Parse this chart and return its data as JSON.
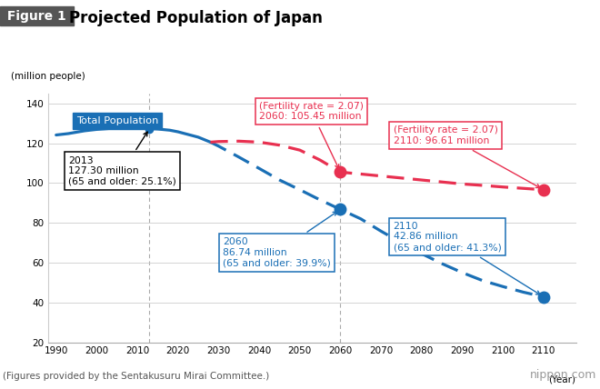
{
  "title": "Projected Population of Japan",
  "figure_label": "Figure 1",
  "ylabel": "(million people)",
  "xlabel": "(Year)",
  "ylim": [
    20,
    145
  ],
  "yticks": [
    20,
    40,
    60,
    80,
    100,
    120,
    140
  ],
  "xlim": [
    1988,
    2118
  ],
  "xticks": [
    1990,
    2000,
    2010,
    2020,
    2030,
    2040,
    2050,
    2060,
    2070,
    2080,
    2090,
    2100,
    2110
  ],
  "footnote": "(Figures provided by the Sentakusuru Mirai Committee.)",
  "watermark": "nippon.com",
  "blue_solid_x": [
    1990,
    1993,
    1997,
    2000,
    2004,
    2008,
    2010,
    2013,
    2015,
    2018,
    2020,
    2025,
    2028
  ],
  "blue_solid_y": [
    124.1,
    124.8,
    126.2,
    126.9,
    127.5,
    128.0,
    128.1,
    127.3,
    127.1,
    126.5,
    125.7,
    123.0,
    120.5
  ],
  "blue_dashed_x": [
    2028,
    2030,
    2035,
    2040,
    2045,
    2050,
    2055,
    2060,
    2065,
    2070,
    2075,
    2080,
    2085,
    2090,
    2095,
    2100,
    2105,
    2110
  ],
  "blue_dashed_y": [
    120.5,
    118.5,
    113.0,
    107.3,
    101.5,
    96.6,
    91.5,
    86.74,
    82.0,
    75.8,
    70.0,
    64.5,
    59.5,
    55.0,
    51.0,
    48.0,
    45.2,
    42.86
  ],
  "red_dashed_x": [
    2028,
    2030,
    2035,
    2040,
    2045,
    2050,
    2055,
    2060,
    2065,
    2070,
    2075,
    2080,
    2085,
    2090,
    2095,
    2100,
    2105,
    2110
  ],
  "red_dashed_y": [
    120.5,
    120.8,
    121.0,
    120.5,
    119.0,
    116.5,
    111.5,
    105.45,
    104.5,
    103.5,
    102.5,
    101.5,
    100.5,
    99.5,
    98.8,
    98.0,
    97.3,
    96.61
  ],
  "blue_color": "#1a6fb5",
  "red_color": "#e83050",
  "vline_x1": 2013,
  "vline_x2": 2060,
  "dot_2013_x": 2013,
  "dot_2013_y": 127.3,
  "dot_b2060_x": 2060,
  "dot_b2060_y": 86.74,
  "dot_b2110_x": 2110,
  "dot_b2110_y": 42.86,
  "dot_r2060_x": 2060,
  "dot_r2060_y": 105.45,
  "dot_r2110_x": 2110,
  "dot_r2110_y": 96.61
}
